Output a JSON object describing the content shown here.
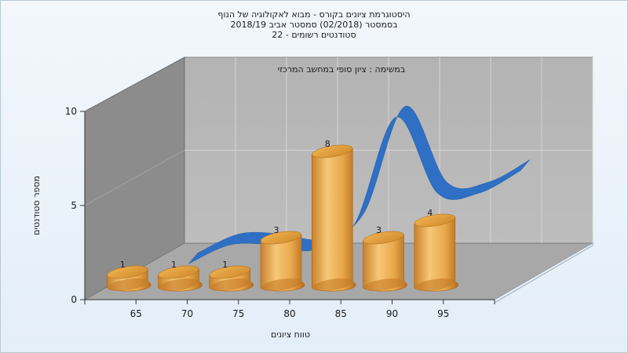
{
  "chart_data": {
    "type": "bar",
    "title_lines": [
      "היסטוגרמת ציונים בקורס - מבוא לאקולוגיה של הנוף",
      "בסמסטר  (02/2018)  סמסטר אביב 2018/19",
      "סטודנטים רשומים - 22"
    ],
    "subtitle": "במשימה : ציון סופי במחשב המרכזי",
    "xlabel": "טווח ציונים",
    "ylabel": "מספר סטודנטים",
    "categories": [
      "65",
      "70",
      "75",
      "80",
      "85",
      "90",
      "95"
    ],
    "x_ticks": [
      "65",
      "70",
      "75",
      "80",
      "85",
      "90",
      "95"
    ],
    "values": [
      1,
      1,
      1,
      3,
      8,
      3,
      4
    ],
    "ylim": [
      0,
      10
    ],
    "y_ticks": [
      0,
      5,
      10
    ],
    "curve": [
      0.8,
      1.9,
      1.9,
      1.6,
      3.1,
      9.3,
      4.9,
      4.9,
      6.2
    ],
    "colors": {
      "bar": "#e9a84a",
      "curve": "#2f6fc4",
      "back_wall": "#b8b8b8",
      "side_wall": "#8a8a8a",
      "floor": "#a9a9a9"
    },
    "grid": true,
    "legend": "none"
  }
}
